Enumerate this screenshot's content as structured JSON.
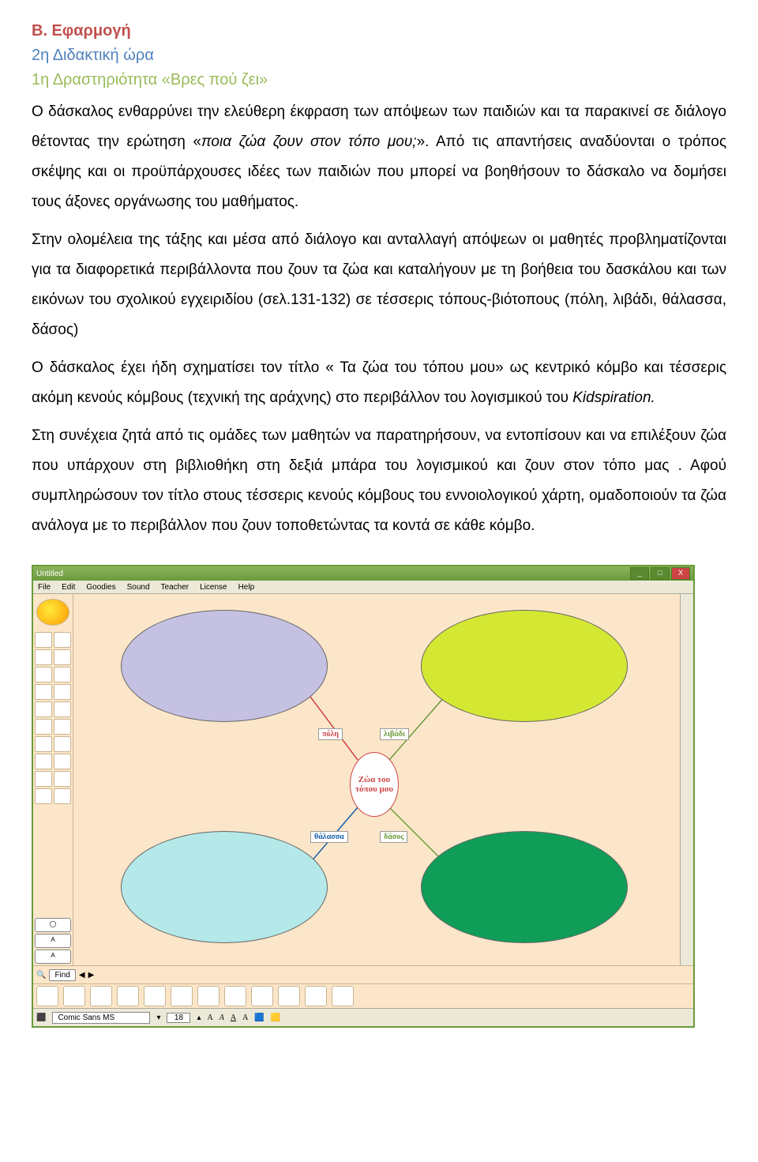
{
  "doc": {
    "heading": "Β. Εφαρμογή",
    "sub1": "2η Διδακτική ώρα",
    "sub2": "1η Δραστηριότητα «Βρες πού ζει»",
    "p1_a": "Ο δάσκαλος ενθαρρύνει την ελεύθερη έκφραση των απόψεων των παιδιών και τα παρακινεί σε διάλογο θέτοντας την ερώτηση «",
    "p1_i": "ποια ζώα ζουν στον τόπο μου;",
    "p1_b": "». Από τις απαντήσεις αναδύονται ο τρόπος σκέψης και οι προϋπάρχουσες ιδέες των παιδιών που μπορεί να βοηθήσουν το δάσκαλο να δομήσει τους άξονες οργάνωσης του μαθήματος.",
    "p2": "Στην ολομέλεια της τάξης και μέσα από διάλογο και ανταλλαγή απόψεων οι μαθητές προβληματίζονται για τα διαφορετικά περιβάλλοντα που ζουν τα ζώα και καταλήγουν με τη βοήθεια του δασκάλου και των εικόνων του σχολικού εγχειριδίου (σελ.131-132) σε τέσσερις τόπους-βιότοπους (πόλη, λιβάδι, θάλασσα, δάσος)",
    "p3_a": "Ο δάσκαλος έχει ήδη σχηματίσει τον τίτλο « Τα ζώα του τόπου μου» ως κεντρικό κόμβο και τέσσερις ακόμη κενούς κόμβους (τεχνική της αράχνης) στο περιβάλλον του λογισμικού του ",
    "p3_i": "Kidspiration.",
    "p4": "Στη συνέχεια ζητά από τις ομάδες των μαθητών να παρατηρήσουν, να εντοπίσουν και να επιλέξουν ζώα που υπάρχουν στη βιβλιοθήκη στη δεξιά μπάρα του λογισμικού και ζουν στον τόπο μας . Αφού συμπληρώσουν τον τίτλο στους τέσσερις κενούς κόμβους του εννοιολογικού χάρτη, ομαδοποιούν τα ζώα ανάλογα με το περιβάλλον που ζουν τοποθετώντας τα κοντά σε κάθε κόμβο.",
    "colors": {
      "heading": "#c0504d",
      "sub1": "#4f81bd",
      "sub2": "#9bbb59"
    }
  },
  "app": {
    "title": "Untitled",
    "menus": [
      "File",
      "Edit",
      "Goodies",
      "Sound",
      "Teacher",
      "License",
      "Help"
    ],
    "window_buttons": [
      "_",
      "□",
      "X"
    ],
    "center_label": "Ζώα του τόπου μου",
    "edge_labels": {
      "l1": "πόλη",
      "l2": "λιβάδι",
      "l3": "θάλασσα",
      "l4": "δάσος"
    },
    "ellipse_colors": {
      "e1": "#c5c1e3",
      "e2": "#d4e833",
      "e3": "#b5e8e8",
      "e4": "#0f9d58"
    },
    "canvas_bg": "#fce6c9",
    "find_label": "Find",
    "font_name": "Comic Sans MS",
    "font_size": "18",
    "format_buttons": [
      "A",
      "A",
      "A",
      "A"
    ],
    "left_icon_count": 20,
    "bottom_tool_count": 12
  }
}
